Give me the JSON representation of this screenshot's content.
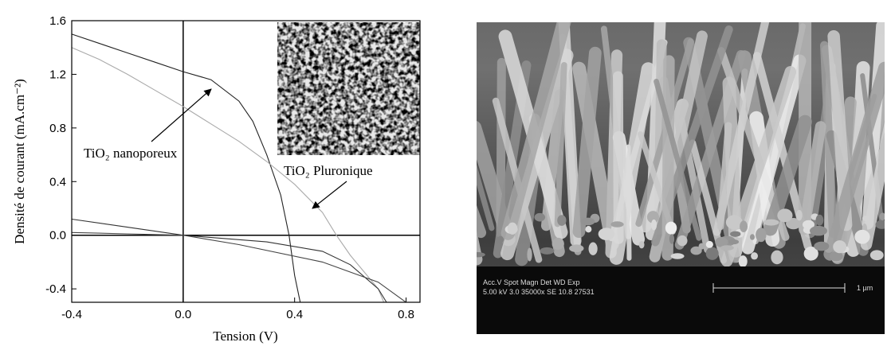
{
  "chart_data": {
    "type": "line",
    "x_label": "Tension (V)",
    "y_label": "Densité de courant (mA.cm⁻²)",
    "xlim": [
      -0.4,
      0.85
    ],
    "ylim": [
      -0.5,
      1.6
    ],
    "xticks": [
      -0.4,
      {
        "value": 0,
        "label": "0.0"
      },
      0.4,
      0.8
    ],
    "yticks": [
      -0.4,
      {
        "value": 0,
        "label": "0.0"
      },
      0.4,
      0.8,
      1.2,
      1.6
    ],
    "series": [
      {
        "name": "TiO₂ nanoporeux",
        "color": "#222222",
        "x": [
          -0.4,
          -0.3,
          -0.2,
          -0.1,
          0.0,
          0.1,
          0.2,
          0.25,
          0.3,
          0.35,
          0.38,
          0.4,
          0.42
        ],
        "values": [
          1.5,
          1.43,
          1.36,
          1.29,
          1.22,
          1.16,
          1.0,
          0.85,
          0.6,
          0.3,
          0.0,
          -0.3,
          -0.5
        ]
      },
      {
        "name": "TiO₂ Pluronique",
        "color": "#aaaaaa",
        "x": [
          -0.4,
          -0.3,
          -0.2,
          -0.1,
          0.0,
          0.1,
          0.2,
          0.3,
          0.4,
          0.5,
          0.55,
          0.6,
          0.7,
          0.72
        ],
        "values": [
          1.4,
          1.31,
          1.2,
          1.08,
          0.96,
          0.83,
          0.7,
          0.55,
          0.38,
          0.17,
          0.0,
          -0.15,
          -0.4,
          -0.5
        ]
      },
      {
        "color": "#333333",
        "x": [
          -0.4,
          -0.2,
          0.0,
          0.3,
          0.5,
          0.6,
          0.7,
          0.73
        ],
        "values": [
          0.12,
          0.06,
          0.0,
          -0.05,
          -0.12,
          -0.22,
          -0.4,
          -0.5
        ]
      },
      {
        "color": "#444444",
        "x": [
          -0.4,
          -0.2,
          0.0,
          0.2,
          0.5,
          0.7,
          0.8
        ],
        "values": [
          0.02,
          0.01,
          0.0,
          -0.07,
          -0.2,
          -0.35,
          -0.5
        ]
      }
    ]
  },
  "sem_image": {
    "header": "Acc.V  Spot Magn    Det  WD   Exp",
    "settings": "5.00 kV 3.0   35000x   SE   10.8 27531",
    "scale": "1 µm"
  }
}
